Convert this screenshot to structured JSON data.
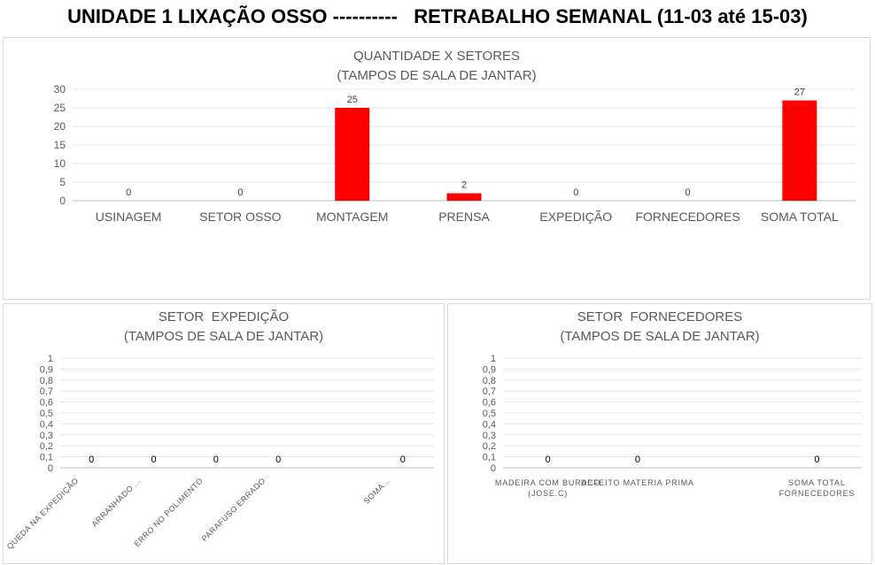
{
  "page": {
    "title": "UNIDADE 1 LIXAÇÃO OSSO ----------   RETRABALHO SEMANAL (11-03 até 15-03)"
  },
  "chart_data": [
    {
      "type": "bar",
      "title": "QUANTIDADE X SETORES",
      "subtitle": "(TAMPOS DE SALA DE JANTAR)",
      "categories": [
        "USINAGEM",
        "SETOR  OSSO",
        "MONTAGEM",
        "PRENSA",
        "EXPEDIÇÃO",
        "FORNECEDORES",
        "SOMA TOTAL"
      ],
      "values": [
        0,
        0,
        25,
        2,
        0,
        0,
        27
      ],
      "ylim": [
        0,
        30
      ],
      "yticks": [
        "0",
        "5",
        "10",
        "15",
        "20",
        "25",
        "30"
      ],
      "data_labels": true,
      "grid": true,
      "bar_color": "#ff0000"
    },
    {
      "type": "bar",
      "title": "SETOR  EXPEDIÇÃO",
      "subtitle": "(TAMPOS DE SALA DE JANTAR)",
      "categories": [
        "QUEDA NA EXPEDIÇÃO",
        "ARRANHADO ...",
        "ERRO NO POLIMENTO",
        "PARAFUSO ERRADO",
        "",
        "SOMA..."
      ],
      "values": [
        0,
        0,
        0,
        0,
        null,
        0
      ],
      "ylim": [
        0,
        1
      ],
      "yticks": [
        "0",
        "0,1",
        "0,2",
        "0,3",
        "0,4",
        "0,5",
        "0,6",
        "0,7",
        "0,8",
        "0,9",
        "1"
      ],
      "data_labels": true,
      "grid": true
    },
    {
      "type": "bar",
      "title": "SETOR  FORNECEDORES",
      "subtitle": "(TAMPOS DE SALA DE JANTAR)",
      "categories": [
        [
          "MADEIRA COM BURACO",
          "(JOSE.C)"
        ],
        [
          "DEFEITO MATERIA PRIMA"
        ],
        [
          ""
        ],
        [
          "SOMA TOTAL",
          "FORNECEDORES"
        ]
      ],
      "values": [
        0,
        0,
        null,
        0
      ],
      "ylim": [
        0,
        1
      ],
      "yticks": [
        "0",
        "0,1",
        "0,2",
        "0,3",
        "0,4",
        "0,5",
        "0,6",
        "0,7",
        "0,8",
        "0,9",
        "1"
      ],
      "data_labels": true,
      "grid": true
    }
  ]
}
